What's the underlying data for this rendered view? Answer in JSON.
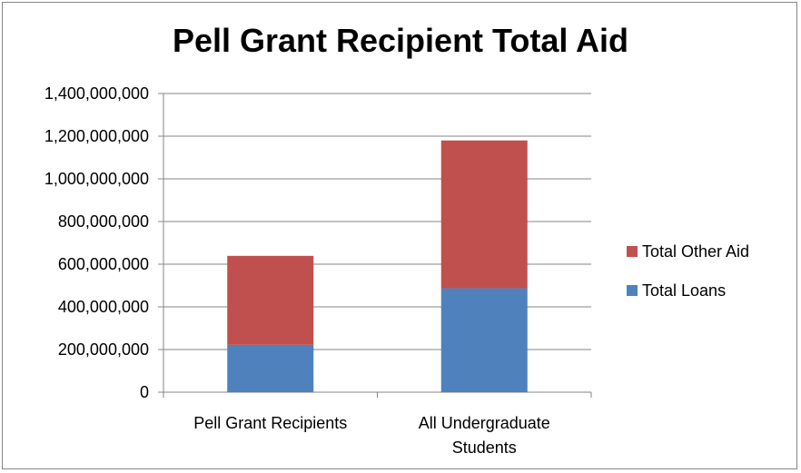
{
  "chart_data": {
    "type": "bar",
    "stacked": true,
    "title": "Pell Grant Recipient Total Aid",
    "xlabel": "",
    "ylabel": "",
    "categories": [
      "Pell Grant Recipients",
      "All Undergraduate Students"
    ],
    "category_label_lines": [
      [
        "Pell Grant Recipients"
      ],
      [
        "All Undergraduate",
        "Students"
      ]
    ],
    "series": [
      {
        "name": "Total Loans",
        "color": "#4f81bd",
        "values": [
          222000000,
          487000000
        ]
      },
      {
        "name": "Total Other Aid",
        "color": "#c0504d",
        "values": [
          417000000,
          693000000
        ]
      }
    ],
    "ylim": [
      0,
      1400000000
    ],
    "yticks": [
      0,
      200000000,
      400000000,
      600000000,
      800000000,
      1000000000,
      1200000000,
      1400000000
    ],
    "ytick_labels": [
      "0",
      "200,000,000",
      "400,000,000",
      "600,000,000",
      "800,000,000",
      "1,000,000,000",
      "1,200,000,000",
      "1,400,000,000"
    ],
    "grid": true,
    "legend_position": "right"
  }
}
